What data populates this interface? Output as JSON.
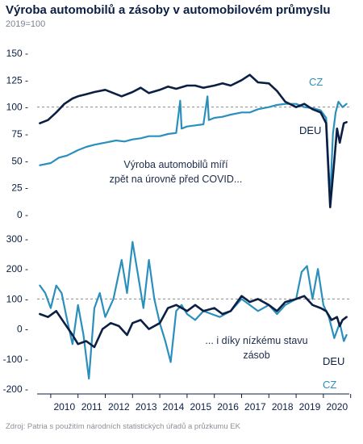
{
  "title": "Výroba automobilů a zásoby v automobilovém průmyslu",
  "subtitle": "2019=100",
  "source": "Zdroj: Patria s použitím národních statistických úřadů a průzkumu EK",
  "colors": {
    "cz": "#2b8fbd",
    "deu": "#0b1f44",
    "refline": "#8a8a8a"
  },
  "chart_data": [
    {
      "type": "line",
      "title": "Výroba automobilů",
      "ylim": [
        0,
        150
      ],
      "yticks": [
        "0",
        "25",
        "50",
        "75",
        "100",
        "125",
        "150"
      ],
      "yticks_values": [
        0,
        25,
        50,
        75,
        100,
        125,
        150
      ],
      "reference_line": 100,
      "annotation": [
        "Výroba automobilů míří",
        "zpět na úrovně před COVID..."
      ],
      "series": [
        {
          "name": "CZ",
          "points": [
            [
              2009.6,
              46
            ],
            [
              2010.0,
              48
            ],
            [
              2010.3,
              53
            ],
            [
              2010.6,
              55
            ],
            [
              2011.0,
              60
            ],
            [
              2011.3,
              63
            ],
            [
              2011.6,
              65
            ],
            [
              2012.0,
              67
            ],
            [
              2012.4,
              69
            ],
            [
              2012.7,
              68
            ],
            [
              2013.0,
              70
            ],
            [
              2013.3,
              71
            ],
            [
              2013.6,
              73
            ],
            [
              2014.0,
              73
            ],
            [
              2014.3,
              75
            ],
            [
              2014.6,
              76
            ],
            [
              2014.75,
              106
            ],
            [
              2014.8,
              80
            ],
            [
              2015.0,
              82
            ],
            [
              2015.3,
              83
            ],
            [
              2015.6,
              84
            ],
            [
              2015.75,
              110
            ],
            [
              2015.8,
              88
            ],
            [
              2016.0,
              90
            ],
            [
              2016.3,
              91
            ],
            [
              2016.6,
              93
            ],
            [
              2017.0,
              95
            ],
            [
              2017.3,
              95
            ],
            [
              2017.6,
              98
            ],
            [
              2018.0,
              100
            ],
            [
              2018.3,
              102
            ],
            [
              2018.6,
              103
            ],
            [
              2019.0,
              103
            ],
            [
              2019.3,
              100
            ],
            [
              2019.6,
              99
            ],
            [
              2019.9,
              97
            ],
            [
              2020.1,
              90
            ],
            [
              2020.25,
              15
            ],
            [
              2020.35,
              75
            ],
            [
              2020.45,
              95
            ],
            [
              2020.55,
              105
            ],
            [
              2020.7,
              100
            ],
            [
              2020.85,
              103
            ]
          ]
        },
        {
          "name": "DEU",
          "points": [
            [
              2009.6,
              85
            ],
            [
              2009.9,
              88
            ],
            [
              2010.2,
              95
            ],
            [
              2010.5,
              103
            ],
            [
              2010.8,
              108
            ],
            [
              2011.0,
              110
            ],
            [
              2011.3,
              112
            ],
            [
              2011.6,
              114
            ],
            [
              2012.0,
              116
            ],
            [
              2012.3,
              113
            ],
            [
              2012.6,
              110
            ],
            [
              2013.0,
              114
            ],
            [
              2013.3,
              118
            ],
            [
              2013.6,
              113
            ],
            [
              2014.0,
              116
            ],
            [
              2014.3,
              119
            ],
            [
              2014.6,
              117
            ],
            [
              2015.0,
              120
            ],
            [
              2015.3,
              120
            ],
            [
              2015.6,
              118
            ],
            [
              2016.0,
              120
            ],
            [
              2016.3,
              122
            ],
            [
              2016.6,
              120
            ],
            [
              2017.0,
              125
            ],
            [
              2017.3,
              130
            ],
            [
              2017.6,
              123
            ],
            [
              2018.0,
              122
            ],
            [
              2018.3,
              115
            ],
            [
              2018.6,
              105
            ],
            [
              2019.0,
              100
            ],
            [
              2019.3,
              103
            ],
            [
              2019.6,
              98
            ],
            [
              2019.9,
              95
            ],
            [
              2020.1,
              85
            ],
            [
              2020.25,
              7
            ],
            [
              2020.4,
              50
            ],
            [
              2020.5,
              80
            ],
            [
              2020.6,
              67
            ],
            [
              2020.75,
              85
            ],
            [
              2020.85,
              86
            ]
          ]
        }
      ]
    },
    {
      "type": "line",
      "title": "Zásoby",
      "ylim": [
        -200,
        300
      ],
      "yticks": [
        "-200",
        "-100",
        "0",
        "100",
        "200",
        "300"
      ],
      "yticks_values": [
        -200,
        -100,
        0,
        100,
        200,
        300
      ],
      "reference_line": 100,
      "annotation": [
        "... i díky nízkému stavu",
        "zásob"
      ],
      "series": [
        {
          "name": "CZ",
          "points": [
            [
              2009.6,
              145
            ],
            [
              2009.8,
              120
            ],
            [
              2010.0,
              70
            ],
            [
              2010.2,
              145
            ],
            [
              2010.4,
              120
            ],
            [
              2010.6,
              30
            ],
            [
              2010.8,
              -50
            ],
            [
              2011.0,
              80
            ],
            [
              2011.2,
              -20
            ],
            [
              2011.4,
              -165
            ],
            [
              2011.6,
              70
            ],
            [
              2011.8,
              120
            ],
            [
              2012.0,
              40
            ],
            [
              2012.3,
              100
            ],
            [
              2012.6,
              230
            ],
            [
              2012.8,
              120
            ],
            [
              2013.0,
              290
            ],
            [
              2013.2,
              180
            ],
            [
              2013.4,
              70
            ],
            [
              2013.6,
              230
            ],
            [
              2013.8,
              100
            ],
            [
              2014.0,
              20
            ],
            [
              2014.2,
              -40
            ],
            [
              2014.4,
              -110
            ],
            [
              2014.6,
              60
            ],
            [
              2014.8,
              80
            ],
            [
              2015.0,
              50
            ],
            [
              2015.3,
              30
            ],
            [
              2015.6,
              60
            ],
            [
              2015.9,
              50
            ],
            [
              2016.2,
              40
            ],
            [
              2016.6,
              60
            ],
            [
              2017.0,
              100
            ],
            [
              2017.3,
              80
            ],
            [
              2017.6,
              60
            ],
            [
              2018.0,
              80
            ],
            [
              2018.3,
              50
            ],
            [
              2018.6,
              80
            ],
            [
              2019.0,
              100
            ],
            [
              2019.2,
              190
            ],
            [
              2019.4,
              210
            ],
            [
              2019.6,
              100
            ],
            [
              2019.8,
              200
            ],
            [
              2020.0,
              80
            ],
            [
              2020.2,
              40
            ],
            [
              2020.4,
              -30
            ],
            [
              2020.6,
              20
            ],
            [
              2020.75,
              -40
            ],
            [
              2020.85,
              -20
            ]
          ]
        },
        {
          "name": "DEU",
          "points": [
            [
              2009.6,
              50
            ],
            [
              2009.9,
              40
            ],
            [
              2010.2,
              60
            ],
            [
              2010.5,
              20
            ],
            [
              2010.8,
              -20
            ],
            [
              2011.0,
              -50
            ],
            [
              2011.3,
              -40
            ],
            [
              2011.6,
              -60
            ],
            [
              2011.9,
              0
            ],
            [
              2012.2,
              20
            ],
            [
              2012.5,
              10
            ],
            [
              2012.8,
              -20
            ],
            [
              2013.0,
              20
            ],
            [
              2013.3,
              30
            ],
            [
              2013.6,
              0
            ],
            [
              2014.0,
              20
            ],
            [
              2014.3,
              70
            ],
            [
              2014.6,
              80
            ],
            [
              2015.0,
              60
            ],
            [
              2015.3,
              80
            ],
            [
              2015.6,
              60
            ],
            [
              2016.0,
              70
            ],
            [
              2016.3,
              50
            ],
            [
              2016.6,
              60
            ],
            [
              2017.0,
              110
            ],
            [
              2017.3,
              90
            ],
            [
              2017.6,
              100
            ],
            [
              2018.0,
              80
            ],
            [
              2018.3,
              60
            ],
            [
              2018.6,
              90
            ],
            [
              2019.0,
              100
            ],
            [
              2019.3,
              110
            ],
            [
              2019.6,
              80
            ],
            [
              2019.9,
              70
            ],
            [
              2020.1,
              60
            ],
            [
              2020.3,
              30
            ],
            [
              2020.5,
              40
            ],
            [
              2020.6,
              10
            ],
            [
              2020.7,
              30
            ],
            [
              2020.85,
              40
            ]
          ]
        }
      ]
    }
  ],
  "xaxis": {
    "range": [
      2009.5,
      2020.95
    ],
    "labels": [
      {
        "text": "2010",
        "value": 2010.5
      },
      {
        "text": "2011",
        "value": 2011.5
      },
      {
        "text": "2012",
        "value": 2012.5
      },
      {
        "text": "2013",
        "value": 2013.5
      },
      {
        "text": "2014",
        "value": 2014.5
      },
      {
        "text": "2015",
        "value": 2015.5
      },
      {
        "text": "2016",
        "value": 2016.5
      },
      {
        "text": "2017",
        "value": 2017.5
      },
      {
        "text": "2018",
        "value": 2018.5
      },
      {
        "text": "2019",
        "value": 2019.5
      },
      {
        "text": "2020",
        "value": 2020.5
      }
    ]
  },
  "labels": {
    "top_cz": "CZ",
    "top_deu": "DEU",
    "bottom_deu": "DEU",
    "bottom_cz": "CZ"
  }
}
